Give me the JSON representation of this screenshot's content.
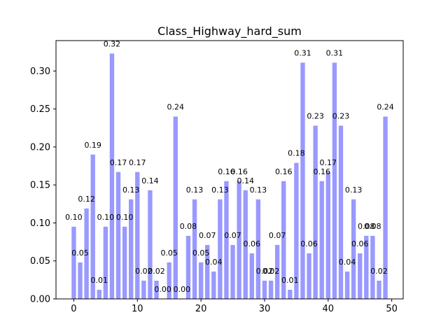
{
  "chart_data": {
    "type": "bar",
    "title": "Class_Highway_hard_sum",
    "xlabel": "",
    "ylabel": "",
    "bar_color": "#9999ff",
    "x": [
      0,
      1,
      2,
      3,
      4,
      5,
      6,
      7,
      8,
      9,
      10,
      11,
      12,
      13,
      14,
      15,
      16,
      17,
      18,
      19,
      20,
      21,
      22,
      23,
      24,
      25,
      26,
      27,
      28,
      29,
      30,
      31,
      32,
      33,
      34,
      35,
      36,
      37,
      38,
      39,
      40,
      41,
      42,
      43,
      44,
      45,
      46,
      47,
      48,
      49
    ],
    "values": [
      0.095,
      0.048,
      0.119,
      0.19,
      0.012,
      0.095,
      0.323,
      0.167,
      0.095,
      0.131,
      0.167,
      0.024,
      0.143,
      0.024,
      0.0,
      0.048,
      0.24,
      0.0,
      0.083,
      0.131,
      0.048,
      0.071,
      0.036,
      0.131,
      0.155,
      0.071,
      0.155,
      0.143,
      0.06,
      0.131,
      0.024,
      0.024,
      0.071,
      0.155,
      0.012,
      0.179,
      0.311,
      0.06,
      0.228,
      0.155,
      0.167,
      0.311,
      0.228,
      0.036,
      0.131,
      0.06,
      0.083,
      0.083,
      0.024,
      0.24
    ],
    "labels": [
      "0.10",
      "0.05",
      "0.12",
      "0.19",
      "0.01",
      "0.10",
      "0.32",
      "0.17",
      "0.10",
      "0.13",
      "0.17",
      "0.02",
      "0.14",
      "0.02",
      "0.00",
      "0.05",
      "0.24",
      "0.00",
      "0.08",
      "0.13",
      "0.05",
      "0.07",
      "0.04",
      "0.13",
      "0.16",
      "0.07",
      "0.16",
      "0.14",
      "0.06",
      "0.13",
      "0.02",
      "0.02",
      "0.07",
      "0.16",
      "0.01",
      "0.18",
      "0.31",
      "0.06",
      "0.23",
      "0.16",
      "0.17",
      "0.31",
      "0.23",
      "0.04",
      "0.13",
      "0.06",
      "0.08",
      "0.08",
      "0.02",
      "0.24"
    ],
    "xlim": [
      -2.8,
      51.8
    ],
    "ylim": [
      0,
      0.34
    ],
    "xticks": [
      0,
      10,
      20,
      30,
      40,
      50
    ],
    "xtick_labels": [
      "0",
      "10",
      "20",
      "30",
      "40",
      "50"
    ],
    "yticks": [
      0.0,
      0.05,
      0.1,
      0.15,
      0.2,
      0.25,
      0.3
    ],
    "ytick_labels": [
      "0.00",
      "0.05",
      "0.10",
      "0.15",
      "0.20",
      "0.25",
      "0.30"
    ],
    "grid": false,
    "legend": "none"
  }
}
